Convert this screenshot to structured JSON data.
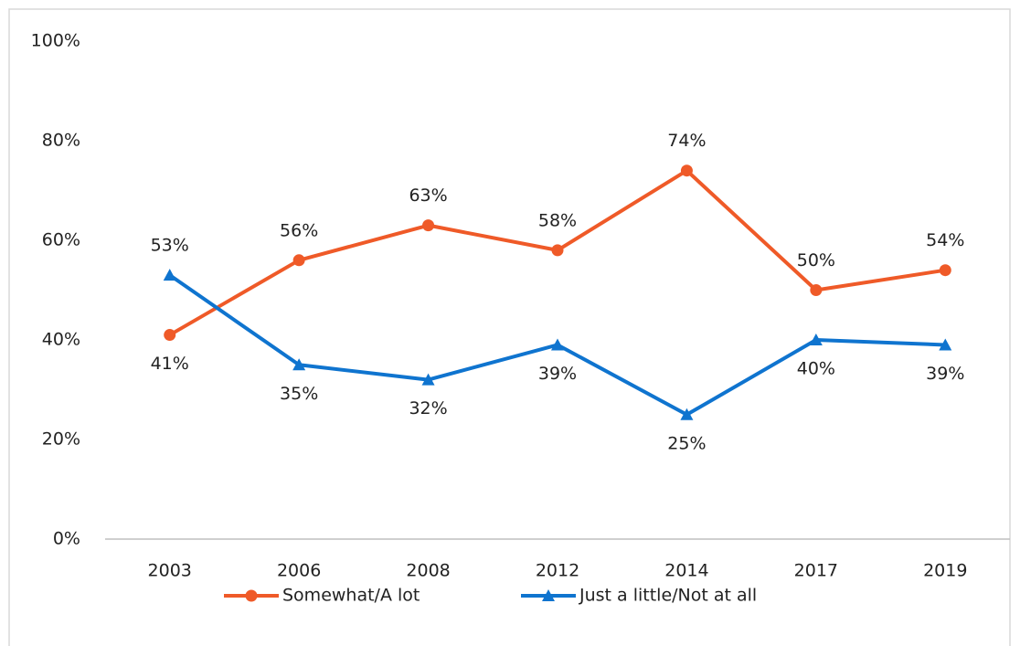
{
  "chart_data": {
    "type": "line",
    "categories": [
      "2003",
      "2006",
      "2008",
      "2012",
      "2014",
      "2017",
      "2019"
    ],
    "series": [
      {
        "name": "Somewhat/A lot",
        "color": "#ef5a28",
        "marker": "circle",
        "values": [
          41,
          56,
          63,
          58,
          74,
          50,
          54
        ],
        "value_labels": [
          "41%",
          "56%",
          "63%",
          "58%",
          "74%",
          "50%",
          "54%"
        ]
      },
      {
        "name": "Just a little/Not at all",
        "color": "#0f74cf",
        "marker": "triangle",
        "values": [
          53,
          35,
          32,
          39,
          25,
          40,
          39
        ],
        "value_labels": [
          "53%",
          "35%",
          "32%",
          "39%",
          "25%",
          "40%",
          "39%"
        ]
      }
    ],
    "ylim": [
      0,
      100
    ],
    "yticks": [
      {
        "value": 0,
        "label": "0%"
      },
      {
        "value": 20,
        "label": "20%"
      },
      {
        "value": 40,
        "label": "40%"
      },
      {
        "value": 60,
        "label": "60%"
      },
      {
        "value": 80,
        "label": "80%"
      },
      {
        "value": 100,
        "label": "100%"
      }
    ],
    "grid": false,
    "legend": "bottom"
  }
}
